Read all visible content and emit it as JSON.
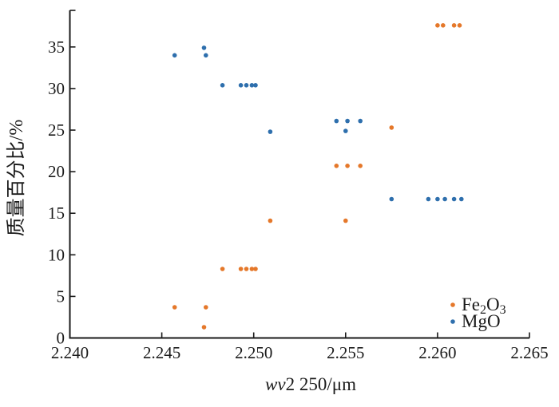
{
  "figure": {
    "background": "#ffffff"
  },
  "chart_data": {
    "type": "scatter",
    "title": "",
    "xlabel": "wv2 250/μm",
    "xlabel_segments": [
      {
        "t": "wv",
        "italic": true
      },
      {
        "t": "2 250/μm"
      }
    ],
    "ylabel": "质量百分比/%",
    "xlim": [
      2.24,
      2.265
    ],
    "ylim": [
      0,
      39.4
    ],
    "grid": false,
    "axis_color": "#1a1a1a",
    "legend_position": "lower-right",
    "xticks": [
      {
        "value": 2.24,
        "label": "2.240"
      },
      {
        "value": 2.245,
        "label": "2.245"
      },
      {
        "value": 2.25,
        "label": "2.250"
      },
      {
        "value": 2.255,
        "label": "2.255"
      },
      {
        "value": 2.26,
        "label": "2.260"
      },
      {
        "value": 2.265,
        "label": "2.265"
      }
    ],
    "yticks": [
      {
        "value": 0,
        "label": "0"
      },
      {
        "value": 5,
        "label": "5"
      },
      {
        "value": 10,
        "label": "10"
      },
      {
        "value": 15,
        "label": "15"
      },
      {
        "value": 20,
        "label": "20"
      },
      {
        "value": 25,
        "label": "25"
      },
      {
        "value": 30,
        "label": "30"
      },
      {
        "value": 35,
        "label": "35"
      }
    ],
    "series": [
      {
        "name": "Fe2O3",
        "label_segments": [
          {
            "t": "Fe"
          },
          {
            "t": "2",
            "sub": true
          },
          {
            "t": "O"
          },
          {
            "t": "3",
            "sub": true
          }
        ],
        "color": "#E5782A",
        "points": [
          [
            2.2457,
            3.7
          ],
          [
            2.2474,
            3.7
          ],
          [
            2.2473,
            1.3
          ],
          [
            2.2483,
            8.3
          ],
          [
            2.2493,
            8.3
          ],
          [
            2.2496,
            8.3
          ],
          [
            2.2499,
            8.3
          ],
          [
            2.2501,
            8.3
          ],
          [
            2.2509,
            14.1
          ],
          [
            2.255,
            14.1
          ],
          [
            2.2545,
            20.7
          ],
          [
            2.2551,
            20.7
          ],
          [
            2.2558,
            20.7
          ],
          [
            2.2575,
            25.3
          ],
          [
            2.26,
            37.6
          ],
          [
            2.2603,
            37.6
          ],
          [
            2.2609,
            37.6
          ],
          [
            2.2612,
            37.6
          ]
        ]
      },
      {
        "name": "MgO",
        "label_segments": [
          {
            "t": "MgO"
          }
        ],
        "color": "#2E6FAD",
        "points": [
          [
            2.2457,
            34.0
          ],
          [
            2.2473,
            34.9
          ],
          [
            2.2474,
            34.0
          ],
          [
            2.2483,
            30.4
          ],
          [
            2.2493,
            30.4
          ],
          [
            2.2496,
            30.4
          ],
          [
            2.2499,
            30.4
          ],
          [
            2.2501,
            30.4
          ],
          [
            2.2509,
            24.8
          ],
          [
            2.2545,
            26.1
          ],
          [
            2.2551,
            26.1
          ],
          [
            2.2558,
            26.1
          ],
          [
            2.255,
            24.9
          ],
          [
            2.2575,
            16.7
          ],
          [
            2.2595,
            16.7
          ],
          [
            2.26,
            16.7
          ],
          [
            2.2604,
            16.7
          ],
          [
            2.2609,
            16.7
          ],
          [
            2.2613,
            16.7
          ]
        ]
      }
    ]
  }
}
